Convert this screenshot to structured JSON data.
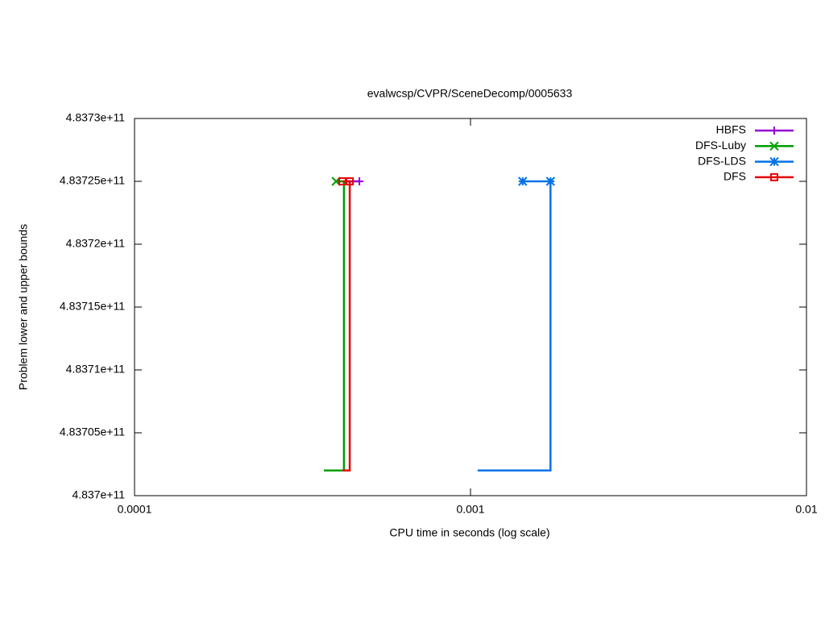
{
  "chart_data": {
    "type": "line",
    "title": "evalwcsp/CVPR/SceneDecomp/0005633",
    "x_label": "CPU time in seconds (log scale)",
    "y_label": "Problem lower and upper bounds",
    "x_log": true,
    "xlim": [
      0.0001,
      0.01
    ],
    "xticks": [
      0.0001,
      0.001,
      0.01
    ],
    "ylim": [
      483700000000,
      483730000000
    ],
    "yticks": [
      {
        "value": 483700000000,
        "label": "4.837e+11"
      },
      {
        "value": 483705000000,
        "label": "4.83705e+11"
      },
      {
        "value": 483710000000,
        "label": "4.8371e+11"
      },
      {
        "value": 483715000000,
        "label": "4.83715e+11"
      },
      {
        "value": 483720000000,
        "label": "4.8372e+11"
      },
      {
        "value": 483725000000,
        "label": "4.83725e+11"
      },
      {
        "value": 483730000000,
        "label": "4.8373e+11"
      }
    ],
    "legend": "top-right",
    "series": [
      {
        "name": "HBFS",
        "color": "#9400d3",
        "marker": "plus",
        "x": [
          0.00042,
          0.000467
        ],
        "values": [
          483725000000,
          483725000000
        ],
        "marker_x": [
          0.000467
        ],
        "marker_values": [
          483725000000
        ]
      },
      {
        "name": "DFS-Luby",
        "color": "#009e00",
        "marker": "cross",
        "x": [
          0.000366,
          0.00042,
          0.00042,
          0.000398
        ],
        "values": [
          483702000000,
          483702000000,
          483725000000,
          483725000000
        ],
        "marker_x": [
          0.000398
        ],
        "marker_values": [
          483725000000
        ]
      },
      {
        "name": "DFS-LDS",
        "color": "#0072e6",
        "marker": "star",
        "x": [
          0.00105,
          0.00173,
          0.00173,
          0.00143
        ],
        "values": [
          483702000000,
          483702000000,
          483725000000,
          483725000000
        ],
        "marker_x": [
          0.00143,
          0.00173
        ],
        "marker_values": [
          483725000000,
          483725000000
        ]
      },
      {
        "name": "DFS",
        "color": "#e50000",
        "marker": "square",
        "x": [
          0.000416,
          0.000437,
          0.000437,
          0.000416
        ],
        "values": [
          483702000000,
          483702000000,
          483725000000,
          483725000000
        ],
        "marker_x": [
          0.000416,
          0.000437
        ],
        "marker_values": [
          483725000000,
          483725000000
        ]
      }
    ]
  }
}
